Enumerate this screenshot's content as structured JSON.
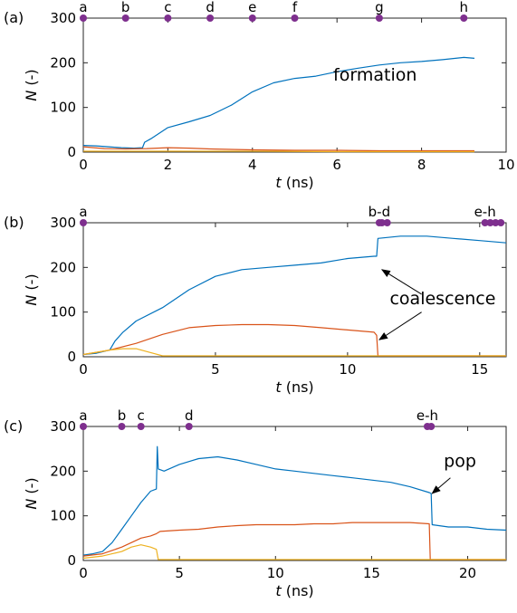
{
  "colors": {
    "s1": "#0072BD",
    "s2": "#D95319",
    "s3": "#EDB120",
    "marker": "#7E2F8E"
  },
  "chart_data": [
    {
      "type": "line",
      "panel_label": "(a)",
      "xlabel_var": "t",
      "xlabel_unit": " (ns)",
      "ylabel_var": "N",
      "ylabel_unit": " (-)",
      "xlim": [
        0,
        10
      ],
      "ylim": [
        0,
        300
      ],
      "xticks": [
        0,
        2,
        4,
        6,
        8,
        10
      ],
      "yticks": [
        0,
        100,
        200,
        300
      ],
      "markers": [
        {
          "x": 0,
          "label": "a"
        },
        {
          "x": 1,
          "label": "b"
        },
        {
          "x": 2,
          "label": "c"
        },
        {
          "x": 3,
          "label": "d"
        },
        {
          "x": 4,
          "label": "e"
        },
        {
          "x": 5,
          "label": "f"
        },
        {
          "x": 7,
          "label": "g"
        },
        {
          "x": 9,
          "label": "h"
        }
      ],
      "annotations": [
        {
          "text": "formation",
          "x": 6.9,
          "y": 160
        }
      ],
      "series": [
        {
          "key": "s1",
          "points": [
            [
              0,
              15
            ],
            [
              0.3,
              14
            ],
            [
              0.6,
              12
            ],
            [
              0.9,
              10
            ],
            [
              1.2,
              9
            ],
            [
              1.4,
              10
            ],
            [
              1.45,
              22
            ],
            [
              1.6,
              30
            ],
            [
              2,
              55
            ],
            [
              2.5,
              68
            ],
            [
              3,
              82
            ],
            [
              3.5,
              105
            ],
            [
              4,
              135
            ],
            [
              4.5,
              155
            ],
            [
              5,
              165
            ],
            [
              5.5,
              170
            ],
            [
              6,
              180
            ],
            [
              6.5,
              188
            ],
            [
              7,
              195
            ],
            [
              7.5,
              200
            ],
            [
              8,
              203
            ],
            [
              8.5,
              207
            ],
            [
              9,
              212
            ],
            [
              9.25,
              210
            ]
          ]
        },
        {
          "key": "s2",
          "points": [
            [
              0,
              12
            ],
            [
              0.5,
              8
            ],
            [
              1,
              7
            ],
            [
              1.5,
              8
            ],
            [
              2,
              10
            ],
            [
              2.5,
              9
            ],
            [
              3,
              7
            ],
            [
              4,
              5
            ],
            [
              5,
              4
            ],
            [
              6,
              4
            ],
            [
              7,
              3
            ],
            [
              8,
              3
            ],
            [
              9,
              3
            ],
            [
              9.25,
              3
            ]
          ]
        },
        {
          "key": "s3",
          "points": [
            [
              0,
              2
            ],
            [
              2,
              2
            ],
            [
              4,
              2
            ],
            [
              6,
              1
            ],
            [
              8,
              1
            ],
            [
              9.25,
              1
            ]
          ]
        }
      ]
    },
    {
      "type": "line",
      "panel_label": "(b)",
      "xlabel_var": "t",
      "xlabel_unit": " (ns)",
      "ylabel_var": "N",
      "ylabel_unit": " (-)",
      "xlim": [
        0,
        16
      ],
      "ylim": [
        0,
        300
      ],
      "xticks": [
        0,
        5,
        10,
        15
      ],
      "yticks": [
        0,
        100,
        200,
        300
      ],
      "markers": [
        {
          "x": 0,
          "label": "a"
        },
        {
          "x": 11.2,
          "label": "b-d"
        },
        {
          "x": 11.3,
          "label": ""
        },
        {
          "x": 11.5,
          "label": ""
        },
        {
          "x": 15.2,
          "label": "e-h"
        },
        {
          "x": 15.4,
          "label": ""
        },
        {
          "x": 15.6,
          "label": ""
        },
        {
          "x": 15.8,
          "label": ""
        }
      ],
      "annotations": [
        {
          "text": "coalescence",
          "x": 13.6,
          "y": 118
        },
        {
          "arrow_from": [
            12.8,
            140
          ],
          "arrow_to": [
            11.3,
            195
          ]
        },
        {
          "arrow_from": [
            12.8,
            100
          ],
          "arrow_to": [
            11.2,
            38
          ]
        }
      ],
      "series": [
        {
          "key": "s1",
          "points": [
            [
              0,
              5
            ],
            [
              0.5,
              8
            ],
            [
              1,
              15
            ],
            [
              1.2,
              35
            ],
            [
              1.5,
              55
            ],
            [
              2,
              80
            ],
            [
              3,
              110
            ],
            [
              4,
              150
            ],
            [
              5,
              180
            ],
            [
              6,
              195
            ],
            [
              7,
              200
            ],
            [
              8,
              205
            ],
            [
              9,
              210
            ],
            [
              10,
              220
            ],
            [
              11,
              225
            ],
            [
              11.1,
              225
            ],
            [
              11.15,
              265
            ],
            [
              12,
              270
            ],
            [
              13,
              270
            ],
            [
              14,
              265
            ],
            [
              15,
              260
            ],
            [
              16,
              255
            ]
          ]
        },
        {
          "key": "s2",
          "points": [
            [
              0,
              5
            ],
            [
              0.5,
              10
            ],
            [
              1,
              15
            ],
            [
              2,
              30
            ],
            [
              3,
              50
            ],
            [
              4,
              65
            ],
            [
              5,
              70
            ],
            [
              6,
              72
            ],
            [
              7,
              72
            ],
            [
              8,
              70
            ],
            [
              9,
              65
            ],
            [
              10,
              60
            ],
            [
              11,
              55
            ],
            [
              11.1,
              48
            ],
            [
              11.15,
              2
            ],
            [
              12,
              2
            ],
            [
              14,
              2
            ],
            [
              16,
              2
            ]
          ]
        },
        {
          "key": "s3",
          "points": [
            [
              0,
              5
            ],
            [
              0.5,
              10
            ],
            [
              1,
              15
            ],
            [
              1.5,
              18
            ],
            [
              2,
              18
            ],
            [
              2.5,
              10
            ],
            [
              3,
              2
            ],
            [
              4,
              2
            ],
            [
              8,
              2
            ],
            [
              12,
              2
            ],
            [
              16,
              2
            ]
          ]
        }
      ]
    },
    {
      "type": "line",
      "panel_label": "(c)",
      "xlabel_var": "t",
      "xlabel_unit": " (ns)",
      "ylabel_var": "N",
      "ylabel_unit": " (-)",
      "xlim": [
        0,
        22
      ],
      "ylim": [
        0,
        300
      ],
      "xticks": [
        0,
        5,
        10,
        15,
        20
      ],
      "yticks": [
        0,
        100,
        200,
        300
      ],
      "markers": [
        {
          "x": 0,
          "label": "a"
        },
        {
          "x": 2,
          "label": "b"
        },
        {
          "x": 3,
          "label": "c"
        },
        {
          "x": 5.5,
          "label": "d"
        },
        {
          "x": 17.9,
          "label": "e-h"
        },
        {
          "x": 18.1,
          "label": ""
        }
      ],
      "annotations": [
        {
          "text": "pop",
          "x": 19.6,
          "y": 210
        },
        {
          "arrow_from": [
            19.1,
            185
          ],
          "arrow_to": [
            18.15,
            150
          ]
        }
      ],
      "series": [
        {
          "key": "s1",
          "points": [
            [
              0,
              12
            ],
            [
              0.5,
              15
            ],
            [
              1,
              20
            ],
            [
              1.5,
              40
            ],
            [
              2,
              70
            ],
            [
              2.5,
              100
            ],
            [
              3,
              130
            ],
            [
              3.5,
              155
            ],
            [
              3.8,
              160
            ],
            [
              3.85,
              255
            ],
            [
              3.9,
              205
            ],
            [
              4.2,
              200
            ],
            [
              5,
              215
            ],
            [
              6,
              228
            ],
            [
              7,
              232
            ],
            [
              8,
              225
            ],
            [
              9,
              215
            ],
            [
              10,
              205
            ],
            [
              11,
              200
            ],
            [
              12,
              195
            ],
            [
              13,
              190
            ],
            [
              14,
              185
            ],
            [
              15,
              180
            ],
            [
              16,
              175
            ],
            [
              17,
              165
            ],
            [
              18,
              152
            ],
            [
              18.1,
              150
            ],
            [
              18.15,
              80
            ],
            [
              19,
              75
            ],
            [
              20,
              75
            ],
            [
              21,
              70
            ],
            [
              22,
              68
            ]
          ]
        },
        {
          "key": "s2",
          "points": [
            [
              0,
              10
            ],
            [
              1,
              15
            ],
            [
              2,
              30
            ],
            [
              3,
              50
            ],
            [
              3.5,
              55
            ],
            [
              3.8,
              60
            ],
            [
              4,
              65
            ],
            [
              5,
              68
            ],
            [
              6,
              70
            ],
            [
              7,
              75
            ],
            [
              8,
              78
            ],
            [
              9,
              80
            ],
            [
              10,
              80
            ],
            [
              11,
              80
            ],
            [
              12,
              82
            ],
            [
              13,
              82
            ],
            [
              14,
              85
            ],
            [
              15,
              85
            ],
            [
              16,
              85
            ],
            [
              17,
              85
            ],
            [
              18,
              82
            ],
            [
              18.05,
              2
            ],
            [
              19,
              2
            ],
            [
              20,
              2
            ],
            [
              22,
              2
            ]
          ]
        },
        {
          "key": "s3",
          "points": [
            [
              0,
              5
            ],
            [
              1,
              10
            ],
            [
              1.5,
              15
            ],
            [
              2,
              20
            ],
            [
              2.5,
              30
            ],
            [
              3,
              35
            ],
            [
              3.5,
              30
            ],
            [
              3.8,
              25
            ],
            [
              3.9,
              2
            ],
            [
              5,
              2
            ],
            [
              10,
              2
            ],
            [
              15,
              2
            ],
            [
              22,
              2
            ]
          ]
        }
      ]
    }
  ]
}
